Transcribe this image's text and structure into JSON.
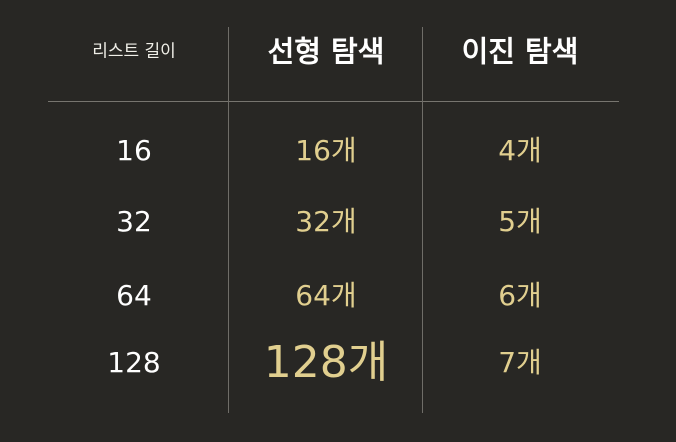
{
  "headers": {
    "length": "리스트 길이",
    "linear": "선형 탐색",
    "binary": "이진 탐색"
  },
  "rows": [
    {
      "length": "16",
      "linear": "16개",
      "binary": "4개"
    },
    {
      "length": "32",
      "linear": "32개",
      "binary": "5개"
    },
    {
      "length": "64",
      "linear": "64개",
      "binary": "6개"
    },
    {
      "length": "128",
      "linear": "128개",
      "binary": "7개"
    }
  ],
  "colors": {
    "background": "#282724",
    "header_text": "#ffffff",
    "highlight_text": "#e1cf8f",
    "rule": "#77756f"
  }
}
